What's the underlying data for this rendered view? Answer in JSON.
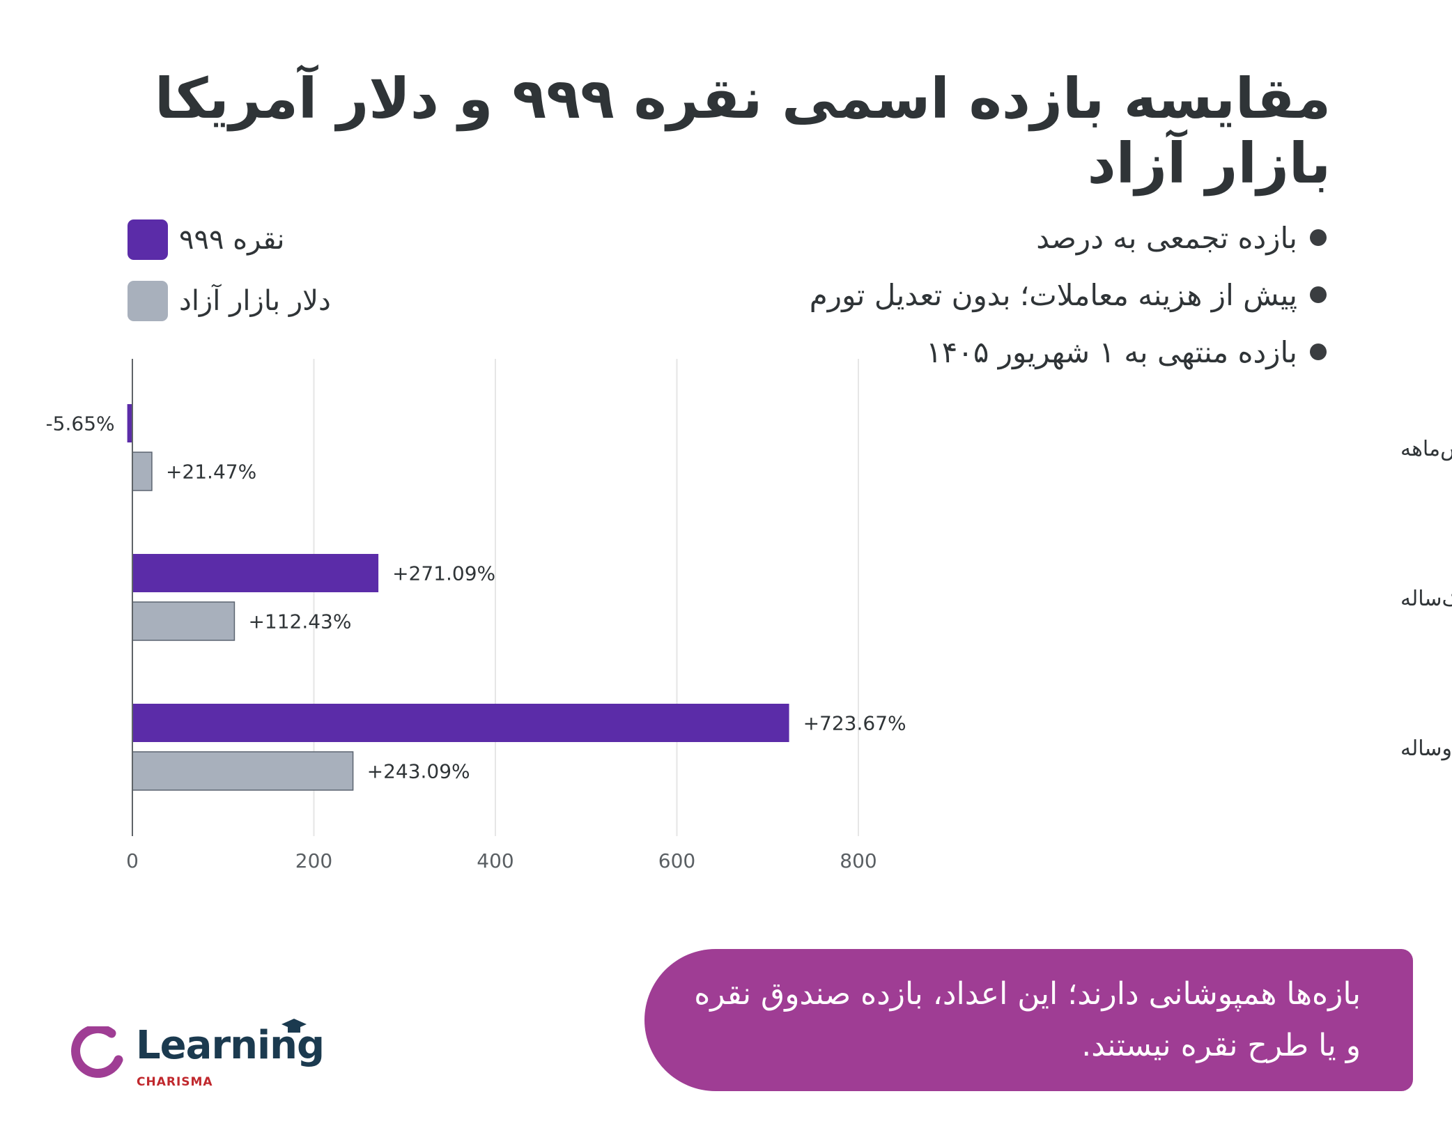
{
  "title": "مقایسه بازده اسمی نقره ۹۹۹ و دلار آمریکا بازار آزاد",
  "notes": [
    "بازده تجمعی به درصد",
    "پیش از هزینه معاملات؛ بدون تعدیل تورم",
    "بازده منتهی به ۱ شهریور ۱۴۰۵"
  ],
  "legend": [
    {
      "label": "نقره ۹۹۹",
      "color": "#5b2ca8"
    },
    {
      "label": "دلار بازار آزاد",
      "color": "#a8b0bc"
    }
  ],
  "chart_data": {
    "type": "bar",
    "orientation": "horizontal",
    "categories": [
      "حدود شش‌ماهه",
      "یک‌ساله",
      "حدود دوساله"
    ],
    "series": [
      {
        "name": "نقره ۹۹۹",
        "color": "#5b2ca8",
        "values": [
          -5.65,
          271.09,
          723.67
        ],
        "labels": [
          "-5.65%",
          "+271.09%",
          "+723.67%"
        ]
      },
      {
        "name": "دلار بازار آزاد",
        "color": "#a8b0bc",
        "values": [
          21.47,
          112.43,
          243.09
        ],
        "labels": [
          "+21.47%",
          "+112.43%",
          "+243.09%"
        ]
      }
    ],
    "xticks": [
      0,
      200,
      400,
      600,
      800
    ],
    "xlim": [
      -6,
      1000
    ],
    "grid": true,
    "legend_position": "top-left"
  },
  "callout": {
    "text": "بازه‌ها همپوشانی دارند؛ این اعداد، بازده صندوق نقره و یا طرح نقره نیستند."
  },
  "logo": {
    "word": "Learning",
    "sub": "CHARISMA"
  }
}
